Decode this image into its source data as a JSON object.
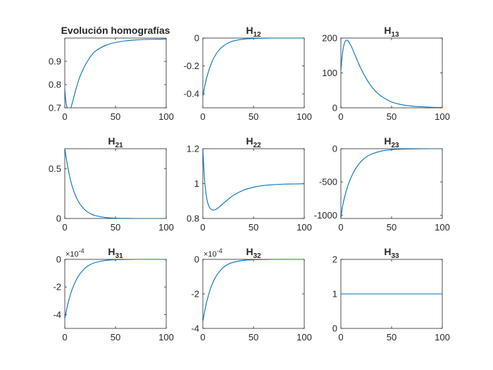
{
  "figure": {
    "background": "#ffffff",
    "line_color": "#0072bd",
    "axis_color": "#262626"
  },
  "chart_data": [
    {
      "id": "p11",
      "type": "line",
      "title": "Evolución homografías",
      "title_main": "Evolución homografías",
      "title_sub": "",
      "xlim": [
        0,
        100
      ],
      "ylim": [
        0.7,
        1.0
      ],
      "xticks": [
        0,
        50,
        100
      ],
      "xtick_labels": [
        "0",
        "50",
        "100"
      ],
      "yticks": [
        0.7,
        0.8,
        0.9
      ],
      "ytick_labels": [
        "0.7",
        "0.8",
        "0.9"
      ],
      "exponent": "",
      "x": [
        0,
        1,
        2,
        3,
        4,
        5,
        6,
        7,
        8,
        10,
        12,
        15,
        20,
        25,
        30,
        40,
        50,
        60,
        70,
        80,
        90,
        100
      ],
      "y": [
        0.78,
        0.73,
        0.705,
        0.698,
        0.695,
        0.697,
        0.7,
        0.715,
        0.73,
        0.765,
        0.795,
        0.835,
        0.883,
        0.918,
        0.943,
        0.968,
        0.981,
        0.988,
        0.992,
        0.994,
        0.995,
        0.996
      ]
    },
    {
      "id": "p12",
      "type": "line",
      "title": "H12",
      "title_main": "H",
      "title_sub": "12",
      "xlim": [
        0,
        100
      ],
      "ylim": [
        -0.5,
        0
      ],
      "xticks": [
        0,
        50,
        100
      ],
      "xtick_labels": [
        "0",
        "50",
        "100"
      ],
      "yticks": [
        -0.4,
        -0.2,
        0
      ],
      "ytick_labels": [
        "-0.4",
        "-0.2",
        "0"
      ],
      "exponent": "",
      "x": [
        0,
        2,
        4,
        6,
        8,
        10,
        12,
        15,
        20,
        25,
        30,
        40,
        50,
        60,
        70,
        80,
        90,
        100
      ],
      "y": [
        -0.42,
        -0.34,
        -0.28,
        -0.23,
        -0.19,
        -0.155,
        -0.127,
        -0.095,
        -0.058,
        -0.035,
        -0.021,
        -0.008,
        -0.003,
        -0.001,
        0,
        0,
        0,
        0
      ]
    },
    {
      "id": "p13",
      "type": "line",
      "title": "H13",
      "title_main": "H",
      "title_sub": "13",
      "xlim": [
        0,
        100
      ],
      "ylim": [
        0,
        200
      ],
      "xticks": [
        0,
        50,
        100
      ],
      "xtick_labels": [
        "0",
        "50",
        "100"
      ],
      "yticks": [
        0,
        100,
        200
      ],
      "ytick_labels": [
        "0",
        "100",
        "200"
      ],
      "exponent": "",
      "x": [
        0,
        1,
        2,
        3,
        4,
        5,
        6,
        7,
        8,
        10,
        12,
        15,
        20,
        25,
        30,
        35,
        40,
        50,
        60,
        70,
        80,
        90,
        100
      ],
      "y": [
        105,
        140,
        165,
        180,
        189,
        193,
        194,
        192,
        188,
        178,
        165,
        144,
        111,
        84,
        62,
        45,
        33,
        17,
        9,
        5,
        3,
        1.5,
        0.8
      ]
    },
    {
      "id": "p21",
      "type": "line",
      "title": "H21",
      "title_main": "H",
      "title_sub": "21",
      "xlim": [
        0,
        100
      ],
      "ylim": [
        0,
        0.7
      ],
      "xticks": [
        0,
        50,
        100
      ],
      "xtick_labels": [
        "0",
        "50",
        "100"
      ],
      "yticks": [
        0,
        0.5
      ],
      "ytick_labels": [
        "0",
        "0.5"
      ],
      "exponent": "",
      "x": [
        0,
        2,
        4,
        6,
        8,
        10,
        12,
        15,
        20,
        25,
        30,
        40,
        50,
        60,
        70,
        80,
        90,
        100
      ],
      "y": [
        0.7,
        0.57,
        0.46,
        0.37,
        0.3,
        0.245,
        0.198,
        0.145,
        0.085,
        0.05,
        0.029,
        0.01,
        0.003,
        0.001,
        0,
        0,
        0,
        0
      ]
    },
    {
      "id": "p22",
      "type": "line",
      "title": "H22",
      "title_main": "H",
      "title_sub": "22",
      "xlim": [
        0,
        100
      ],
      "ylim": [
        0.8,
        1.2
      ],
      "xticks": [
        0,
        50,
        100
      ],
      "xtick_labels": [
        "0",
        "50",
        "100"
      ],
      "yticks": [
        0.8,
        1.0,
        1.2
      ],
      "ytick_labels": [
        "0.8",
        "1",
        "1.2"
      ],
      "exponent": "",
      "x": [
        0,
        1,
        2,
        4,
        6,
        8,
        10,
        12,
        15,
        20,
        25,
        30,
        40,
        50,
        60,
        70,
        80,
        90,
        100
      ],
      "y": [
        1.2,
        1.09,
        1.0,
        0.91,
        0.87,
        0.853,
        0.848,
        0.85,
        0.86,
        0.885,
        0.91,
        0.932,
        0.962,
        0.979,
        0.989,
        0.994,
        0.997,
        0.998,
        0.999
      ]
    },
    {
      "id": "p23",
      "type": "line",
      "title": "H23",
      "title_main": "H",
      "title_sub": "23",
      "xlim": [
        0,
        100
      ],
      "ylim": [
        -1050,
        0
      ],
      "xticks": [
        0,
        50,
        100
      ],
      "xtick_labels": [
        "0",
        "50",
        "100"
      ],
      "yticks": [
        -1000,
        -500,
        0
      ],
      "ytick_labels": [
        "-1000",
        "-500",
        "0"
      ],
      "exponent": "",
      "x": [
        0,
        1,
        2,
        4,
        6,
        8,
        10,
        12,
        15,
        20,
        25,
        30,
        40,
        50,
        60,
        70,
        80,
        90,
        100
      ],
      "y": [
        -1050,
        -930,
        -840,
        -710,
        -600,
        -510,
        -435,
        -370,
        -290,
        -190,
        -125,
        -82,
        -35,
        -15,
        -6,
        -3,
        -1,
        0,
        0
      ]
    },
    {
      "id": "p31",
      "type": "line",
      "title": "H31",
      "title_main": "H",
      "title_sub": "31",
      "xlim": [
        0,
        100
      ],
      "ylim": [
        -5,
        0
      ],
      "xticks": [
        0,
        50,
        100
      ],
      "xtick_labels": [
        "0",
        "50",
        "100"
      ],
      "yticks": [
        -4,
        -2,
        0
      ],
      "ytick_labels": [
        "-4",
        "-2",
        "0"
      ],
      "exponent": "× 10^-4",
      "exponent_base": "×10",
      "exponent_power": "-4",
      "x": [
        0,
        2,
        4,
        6,
        8,
        10,
        12,
        15,
        20,
        25,
        30,
        40,
        50,
        60,
        70,
        80,
        90,
        100
      ],
      "y": [
        -4.3,
        -3.55,
        -2.95,
        -2.45,
        -2.03,
        -1.68,
        -1.39,
        -1.05,
        -0.63,
        -0.38,
        -0.23,
        -0.08,
        -0.03,
        -0.01,
        0,
        0,
        0,
        0
      ]
    },
    {
      "id": "p32",
      "type": "line",
      "title": "H32",
      "title_main": "H",
      "title_sub": "32",
      "xlim": [
        0,
        100
      ],
      "ylim": [
        -4,
        0
      ],
      "xticks": [
        0,
        50,
        100
      ],
      "xtick_labels": [
        "0",
        "50",
        "100"
      ],
      "yticks": [
        -4,
        -2,
        0
      ],
      "ytick_labels": [
        "-4",
        "-2",
        "0"
      ],
      "exponent": "× 10^-4",
      "exponent_base": "×10",
      "exponent_power": "-4",
      "x": [
        0,
        2,
        4,
        6,
        8,
        10,
        12,
        15,
        20,
        25,
        30,
        40,
        50,
        60,
        70,
        80,
        90,
        100
      ],
      "y": [
        -3.6,
        -2.95,
        -2.42,
        -1.98,
        -1.62,
        -1.33,
        -1.09,
        -0.81,
        -0.48,
        -0.28,
        -0.17,
        -0.06,
        -0.02,
        -0.01,
        0,
        0,
        0,
        0
      ]
    },
    {
      "id": "p33",
      "type": "line",
      "title": "H33",
      "title_main": "H",
      "title_sub": "33",
      "xlim": [
        0,
        100
      ],
      "ylim": [
        0,
        2
      ],
      "xticks": [
        0,
        50,
        100
      ],
      "xtick_labels": [
        "0",
        "50",
        "100"
      ],
      "yticks": [
        0,
        1,
        2
      ],
      "ytick_labels": [
        "0",
        "1",
        "2"
      ],
      "exponent": "",
      "x": [
        0,
        100
      ],
      "y": [
        1,
        1
      ]
    }
  ]
}
